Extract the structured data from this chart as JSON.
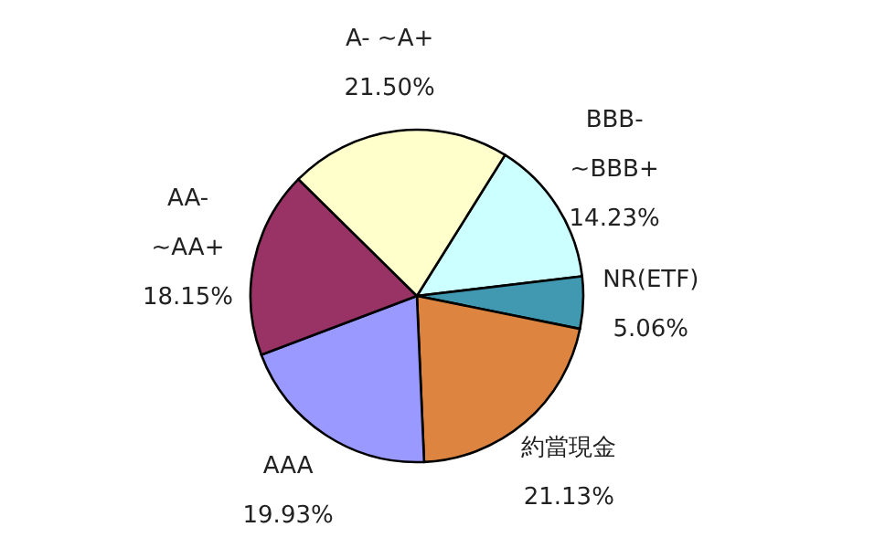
{
  "chart_data": {
    "type": "pie",
    "categories": [
      "BBB- ~BBB+",
      "NR(ETF)",
      "約當現金",
      "AAA",
      "AA- ~AA+",
      "A- ~A+"
    ],
    "values": [
      14.23,
      5.06,
      21.13,
      19.93,
      18.15,
      21.5
    ],
    "value_labels": [
      "14.23%",
      "5.06%",
      "21.13%",
      "19.93%",
      "18.15%",
      "21.50%"
    ],
    "colors": [
      "#ccffff",
      "#4099b0",
      "#dd8540",
      "#9999ff",
      "#993366",
      "#ffffcc"
    ]
  }
}
